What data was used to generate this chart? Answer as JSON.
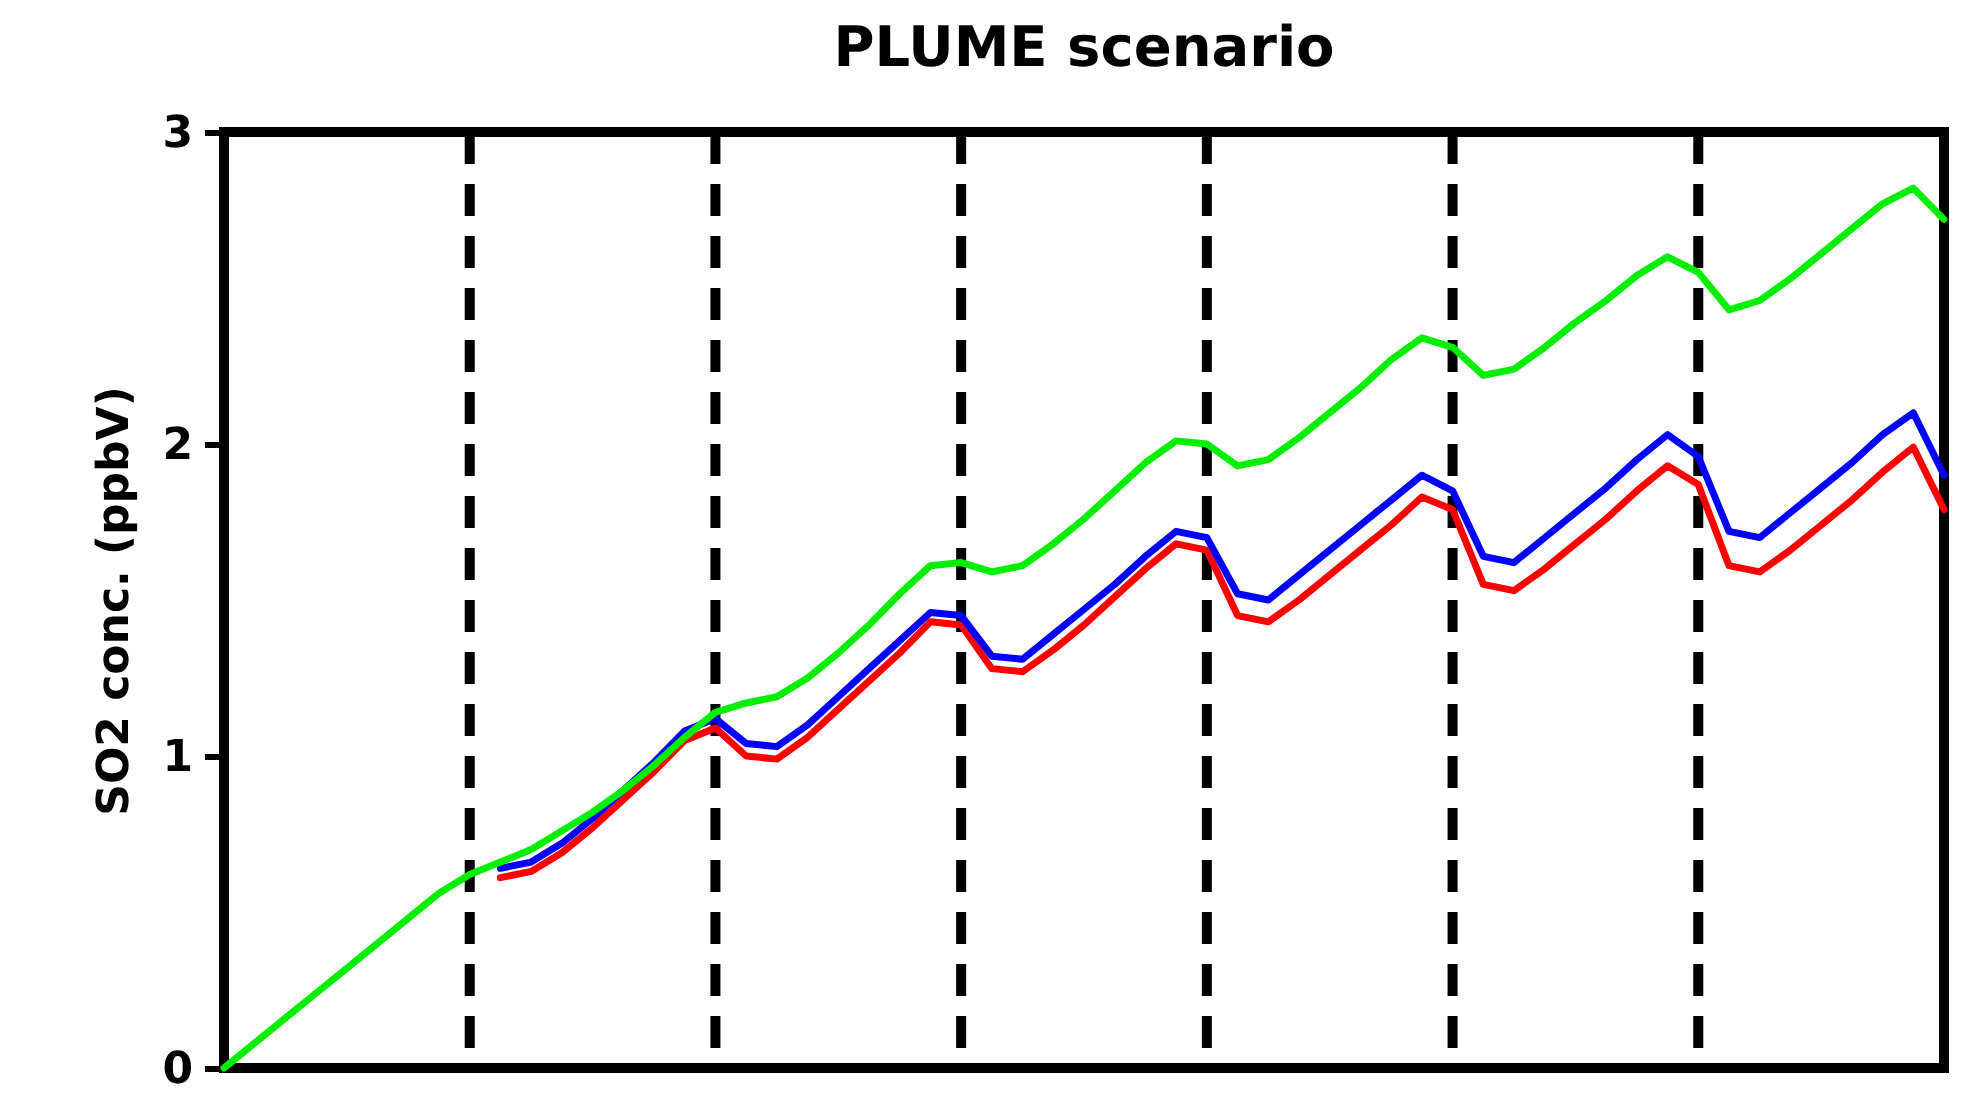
{
  "chart_data": {
    "type": "line",
    "title": "PLUME scenario",
    "ylabel": "SO2 conc. (ppbV)",
    "categories": [
      null,
      null,
      null,
      null,
      null,
      null,
      null,
      null,
      null,
      null,
      null,
      null,
      null,
      null,
      null,
      null,
      null,
      null,
      null,
      null,
      null,
      null,
      null,
      null,
      null,
      null,
      null,
      null,
      null,
      null,
      null,
      null,
      null,
      null,
      null,
      null,
      null,
      null,
      null,
      null,
      null,
      null,
      null,
      null,
      null,
      null,
      null,
      null,
      null,
      null,
      null,
      null,
      null,
      null,
      null,
      null,
      null
    ],
    "grid": "x",
    "ylim": [
      0,
      3
    ],
    "yticks": [
      0,
      1,
      2,
      3
    ],
    "tick_labels": "y",
    "series": [
      {
        "color": "#00ee00",
        "values": [
          0,
          0.08,
          0.16,
          0.24,
          0.32,
          0.4,
          0.48,
          0.56,
          0.62,
          0.66,
          0.7,
          0.76,
          0.82,
          0.89,
          0.97,
          1.06,
          1.14,
          1.17,
          1.19,
          1.25,
          1.33,
          1.42,
          1.52,
          1.61,
          1.62,
          1.59,
          1.61,
          1.68,
          1.76,
          1.85,
          1.94,
          2.01,
          2.0,
          1.93,
          1.95,
          2.02,
          2.1,
          2.18,
          2.27,
          2.34,
          2.31,
          2.22,
          2.24,
          2.31,
          2.39,
          2.46,
          2.54,
          2.6,
          2.55,
          2.43,
          2.46,
          2.53,
          2.61,
          2.69,
          2.77,
          2.82,
          2.72
        ]
      },
      {
        "color": "#0000ff",
        "values": [
          null,
          null,
          null,
          null,
          null,
          null,
          null,
          null,
          null,
          0.64,
          0.66,
          0.72,
          0.8,
          0.89,
          0.98,
          1.08,
          1.12,
          1.04,
          1.03,
          1.1,
          1.19,
          1.28,
          1.37,
          1.46,
          1.45,
          1.32,
          1.31,
          1.39,
          1.47,
          1.55,
          1.64,
          1.72,
          1.7,
          1.52,
          1.5,
          1.58,
          1.66,
          1.74,
          1.82,
          1.9,
          1.85,
          1.64,
          1.62,
          1.7,
          1.78,
          1.86,
          1.95,
          2.03,
          1.96,
          1.72,
          1.7,
          1.78,
          1.86,
          1.94,
          2.03,
          2.1,
          1.9
        ]
      },
      {
        "color": "#ff0000",
        "values": [
          null,
          null,
          null,
          null,
          null,
          null,
          null,
          null,
          null,
          0.61,
          0.63,
          0.69,
          0.77,
          0.86,
          0.95,
          1.05,
          1.09,
          1.0,
          0.99,
          1.06,
          1.15,
          1.24,
          1.33,
          1.43,
          1.42,
          1.28,
          1.27,
          1.34,
          1.42,
          1.51,
          1.6,
          1.68,
          1.66,
          1.45,
          1.43,
          1.5,
          1.58,
          1.66,
          1.74,
          1.83,
          1.79,
          1.55,
          1.53,
          1.6,
          1.68,
          1.76,
          1.85,
          1.93,
          1.87,
          1.61,
          1.59,
          1.66,
          1.74,
          1.82,
          1.91,
          1.99,
          1.79
        ]
      }
    ]
  }
}
